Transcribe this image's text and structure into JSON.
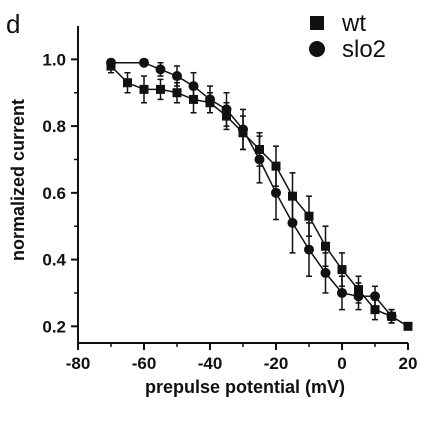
{
  "panel_label": "d",
  "chart_data": {
    "type": "scatter",
    "xlabel": "prepulse potential (mV)",
    "ylabel": "normalized current",
    "xlim": [
      -80,
      20
    ],
    "ylim": [
      0.15,
      1.1
    ],
    "xticks": [
      -80,
      -60,
      -40,
      -20,
      0,
      20
    ],
    "xtick_labels": [
      "-80",
      "-60",
      "-40",
      "-20",
      "0",
      "20"
    ],
    "yticks": [
      0.2,
      0.4,
      0.6,
      0.8,
      1.0
    ],
    "ytick_labels": [
      "0.2",
      "0.4",
      "0.6",
      "0.8",
      "1.0"
    ],
    "grid": false,
    "legend_position": "top-right",
    "series": [
      {
        "name": "wt",
        "marker": "square",
        "x": [
          -70,
          -65,
          -60,
          -55,
          -50,
          -45,
          -40,
          -35,
          -30,
          -25,
          -20,
          -15,
          -10,
          -5,
          0,
          5,
          10,
          15,
          20
        ],
        "y": [
          0.98,
          0.93,
          0.91,
          0.91,
          0.9,
          0.88,
          0.87,
          0.83,
          0.78,
          0.73,
          0.68,
          0.59,
          0.53,
          0.44,
          0.37,
          0.31,
          0.25,
          0.23,
          0.2
        ],
        "err": [
          0.02,
          0.03,
          0.04,
          0.03,
          0.03,
          0.04,
          0.03,
          0.04,
          0.05,
          0.05,
          0.06,
          0.07,
          0.06,
          0.06,
          0.05,
          0.04,
          0.03,
          0.02,
          0.01
        ]
      },
      {
        "name": "slo2",
        "marker": "circle",
        "x": [
          -70,
          -60,
          -55,
          -50,
          -45,
          -40,
          -35,
          -30,
          -25,
          -20,
          -15,
          -10,
          -5,
          0,
          5,
          10,
          15
        ],
        "y": [
          0.99,
          0.99,
          0.97,
          0.95,
          0.92,
          0.88,
          0.85,
          0.79,
          0.7,
          0.6,
          0.51,
          0.43,
          0.36,
          0.3,
          0.29,
          0.29,
          0.23
        ],
        "err": [
          0.01,
          0.01,
          0.02,
          0.03,
          0.04,
          0.04,
          0.05,
          0.06,
          0.07,
          0.08,
          0.09,
          0.08,
          0.06,
          0.05,
          0.04,
          0.03,
          0.02
        ]
      }
    ]
  }
}
